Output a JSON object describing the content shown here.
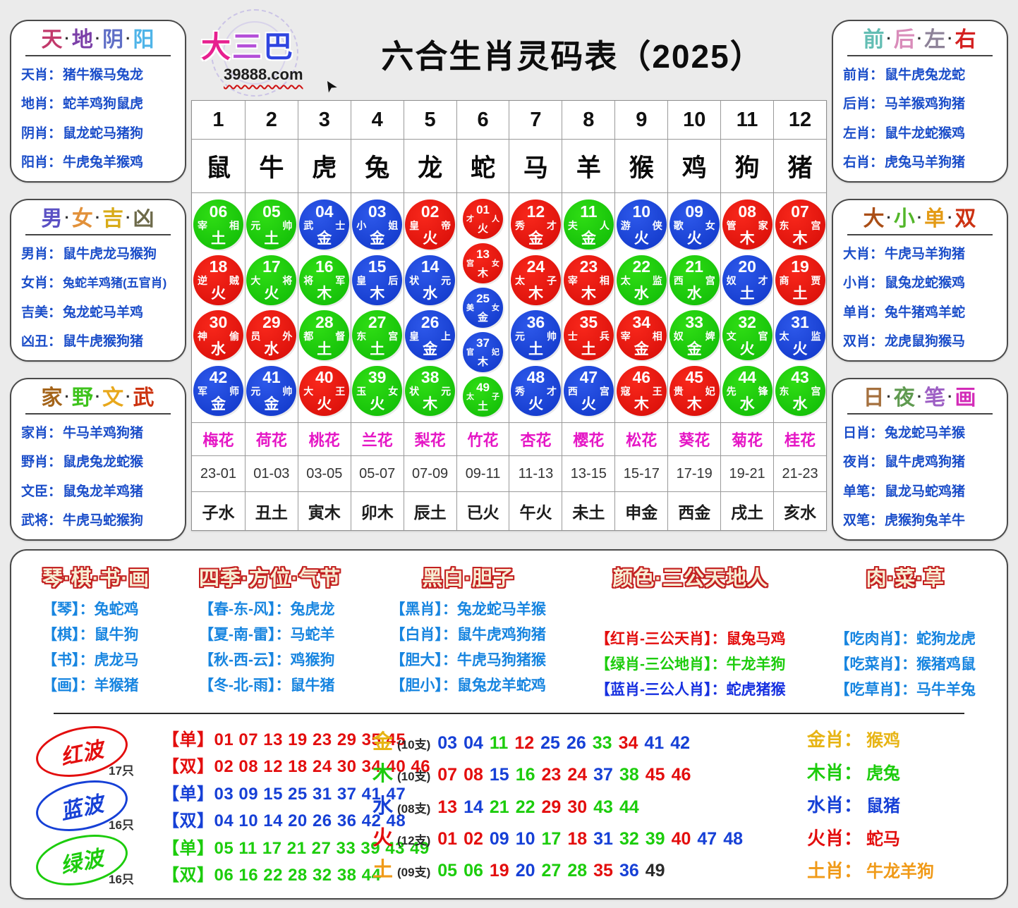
{
  "header": {
    "logo_chars": [
      {
        "t": "大",
        "c": "#e7208f"
      },
      {
        "t": "三",
        "c": "#b44fd8"
      },
      {
        "t": "巴",
        "c": "#2f45e0"
      }
    ],
    "site": "39888.com",
    "title": "六合生肖灵码表（2025）"
  },
  "corner_boxes": [
    {
      "id": "tian-di-yin-yang",
      "header": [
        [
          "天",
          "#c2396b"
        ],
        [
          "地",
          "#7b3fa8"
        ],
        [
          "阴",
          "#5f6ec6"
        ],
        [
          "阳",
          "#4fb4e8"
        ]
      ],
      "rows": [
        [
          "天肖：",
          "猪牛猴马兔龙"
        ],
        [
          "地肖：",
          "蛇羊鸡狗鼠虎"
        ],
        [
          "阴肖：",
          "鼠龙蛇马猪狗"
        ],
        [
          "阳肖：",
          "牛虎兔羊猴鸡"
        ]
      ]
    },
    {
      "id": "qian-hou-zuo-you",
      "header": [
        [
          "前",
          "#62bdb3"
        ],
        [
          "后",
          "#d98cba"
        ],
        [
          "左",
          "#8d8298"
        ],
        [
          "右",
          "#d42222"
        ]
      ],
      "rows": [
        [
          "前肖：",
          "鼠牛虎兔龙蛇"
        ],
        [
          "后肖：",
          "马羊猴鸡狗猪"
        ],
        [
          "左肖：",
          "鼠牛龙蛇猴鸡"
        ],
        [
          "右肖：",
          "虎兔马羊狗猪"
        ]
      ]
    },
    {
      "id": "nan-nv-ji-xiong",
      "header": [
        [
          "男",
          "#5b51c4"
        ],
        [
          "女",
          "#e2913a"
        ],
        [
          "吉",
          "#d8ab18"
        ],
        [
          "凶",
          "#6d6a4a"
        ]
      ],
      "rows": [
        [
          "男肖：",
          "鼠牛虎龙马猴狗"
        ],
        [
          "女肖：",
          "兔蛇羊鸡猪(五官肖)"
        ],
        [
          "吉美：",
          "兔龙蛇马羊鸡"
        ],
        [
          "凶丑：",
          "鼠牛虎猴狗猪"
        ]
      ]
    },
    {
      "id": "da-xiao-dan-shuang",
      "header": [
        [
          "大",
          "#aa4e16"
        ],
        [
          "小",
          "#53b62a"
        ],
        [
          "单",
          "#e39a14"
        ],
        [
          "双",
          "#cc3212"
        ]
      ],
      "rows": [
        [
          "大肖：",
          "牛虎马羊狗猪"
        ],
        [
          "小肖：",
          "鼠兔龙蛇猴鸡"
        ],
        [
          "单肖：",
          "兔牛猪鸡羊蛇"
        ],
        [
          "双肖：",
          "龙虎鼠狗猴马"
        ]
      ]
    },
    {
      "id": "jia-ye-wen-wu",
      "header": [
        [
          "家",
          "#a4641a"
        ],
        [
          "野",
          "#3ec31c"
        ],
        [
          "文",
          "#e8a81c"
        ],
        [
          "武",
          "#cc3410"
        ]
      ],
      "rows": [
        [
          "家肖：",
          "牛马羊鸡狗猪"
        ],
        [
          "野肖：",
          "鼠虎兔龙蛇猴"
        ],
        [
          "文臣：",
          "鼠兔龙羊鸡猪"
        ],
        [
          "武将：",
          "牛虎马蛇猴狗"
        ]
      ]
    },
    {
      "id": "ri-ye-bi-hua",
      "header": [
        [
          "日",
          "#a5703e"
        ],
        [
          "夜",
          "#5f9a50"
        ],
        [
          "笔",
          "#9d5fc4"
        ],
        [
          "画",
          "#d32cb8"
        ]
      ],
      "rows": [
        [
          "日肖：",
          "兔龙蛇马羊猴"
        ],
        [
          "夜肖：",
          "鼠牛虎鸡狗猪"
        ],
        [
          "单笔：",
          "鼠龙马蛇鸡猪"
        ],
        [
          "双笔：",
          "虎猴狗兔羊牛"
        ]
      ]
    }
  ],
  "table": {
    "numbers": [
      "1",
      "2",
      "3",
      "4",
      "5",
      "6",
      "7",
      "8",
      "9",
      "10",
      "11",
      "12"
    ],
    "animals": [
      "鼠",
      "牛",
      "虎",
      "兔",
      "龙",
      "蛇",
      "马",
      "羊",
      "猴",
      "鸡",
      "狗",
      "猪"
    ],
    "flowers": [
      "梅花",
      "荷花",
      "桃花",
      "兰花",
      "梨花",
      "竹花",
      "杏花",
      "樱花",
      "松花",
      "葵花",
      "菊花",
      "桂花"
    ],
    "times": [
      "23-01",
      "01-03",
      "03-05",
      "05-07",
      "07-09",
      "09-11",
      "11-13",
      "13-15",
      "15-17",
      "17-19",
      "19-21",
      "21-23"
    ],
    "branches": [
      "子水",
      "丑土",
      "寅木",
      "卯木",
      "辰土",
      "已火",
      "午火",
      "未土",
      "申金",
      "西金",
      "戌土",
      "亥水"
    ],
    "balls": [
      [
        [
          "06",
          "宰",
          "相",
          "土"
        ],
        [
          "18",
          "逆",
          "贼",
          "火"
        ],
        [
          "30",
          "神",
          "偷",
          "水"
        ],
        [
          "42",
          "军",
          "师",
          "金"
        ]
      ],
      [
        [
          "05",
          "元",
          "帅",
          "土"
        ],
        [
          "17",
          "大",
          "将",
          "火"
        ],
        [
          "29",
          "员",
          "外",
          "水"
        ],
        [
          "41",
          "元",
          "帅",
          "金"
        ]
      ],
      [
        [
          "04",
          "武",
          "士",
          "金"
        ],
        [
          "16",
          "将",
          "军",
          "木"
        ],
        [
          "28",
          "都",
          "督",
          "土"
        ],
        [
          "40",
          "大",
          "王",
          "火"
        ]
      ],
      [
        [
          "03",
          "小",
          "姐",
          "金"
        ],
        [
          "15",
          "皇",
          "后",
          "木"
        ],
        [
          "27",
          "东",
          "宫",
          "土"
        ],
        [
          "39",
          "玉",
          "女",
          "火"
        ]
      ],
      [
        [
          "02",
          "皇",
          "帝",
          "火"
        ],
        [
          "14",
          "状",
          "元",
          "水"
        ],
        [
          "26",
          "皇",
          "上",
          "金"
        ],
        [
          "38",
          "状",
          "元",
          "木"
        ]
      ],
      [
        [
          "01",
          "才",
          "人",
          "火"
        ],
        [
          "13",
          "宫",
          "女",
          "木"
        ],
        [
          "25",
          "美",
          "女",
          "金"
        ],
        [
          "37",
          "官",
          "妃",
          "木"
        ],
        [
          "49",
          "太",
          "子",
          "土"
        ]
      ],
      [
        [
          "12",
          "秀",
          "才",
          "金"
        ],
        [
          "24",
          "太",
          "子",
          "木"
        ],
        [
          "36",
          "元",
          "帅",
          "土"
        ],
        [
          "48",
          "秀",
          "才",
          "火"
        ]
      ],
      [
        [
          "11",
          "夫",
          "人",
          "金"
        ],
        [
          "23",
          "宰",
          "相",
          "木"
        ],
        [
          "35",
          "士",
          "兵",
          "土"
        ],
        [
          "47",
          "西",
          "宫",
          "火"
        ]
      ],
      [
        [
          "10",
          "游",
          "侠",
          "火"
        ],
        [
          "22",
          "太",
          "监",
          "水"
        ],
        [
          "34",
          "宰",
          "相",
          "金"
        ],
        [
          "46",
          "寇",
          "王",
          "木"
        ]
      ],
      [
        [
          "09",
          "歌",
          "女",
          "火"
        ],
        [
          "21",
          "西",
          "宫",
          "水"
        ],
        [
          "33",
          "奴",
          "婢",
          "金"
        ],
        [
          "45",
          "贵",
          "妃",
          "木"
        ]
      ],
      [
        [
          "08",
          "管",
          "家",
          "木"
        ],
        [
          "20",
          "奴",
          "才",
          "土"
        ],
        [
          "32",
          "文",
          "官",
          "火"
        ],
        [
          "44",
          "先",
          "锋",
          "水"
        ]
      ],
      [
        [
          "07",
          "东",
          "宫",
          "木"
        ],
        [
          "19",
          "商",
          "贾",
          "土"
        ],
        [
          "31",
          "太",
          "监",
          "火"
        ],
        [
          "43",
          "东",
          "宫",
          "水"
        ]
      ]
    ]
  },
  "wave_colors": {
    "red": {
      "hex": "#e30e0e",
      "nums": [
        "01",
        "02",
        "07",
        "08",
        "12",
        "13",
        "18",
        "19",
        "23",
        "24",
        "29",
        "30",
        "34",
        "35",
        "40",
        "45",
        "46"
      ]
    },
    "blue": {
      "hex": "#1640d6",
      "nums": [
        "03",
        "04",
        "09",
        "10",
        "14",
        "15",
        "20",
        "25",
        "26",
        "31",
        "36",
        "37",
        "41",
        "42",
        "47",
        "48"
      ]
    },
    "green": {
      "hex": "#1ccc0c",
      "nums": [
        "05",
        "06",
        "11",
        "16",
        "17",
        "21",
        "22",
        "27",
        "28",
        "32",
        "33",
        "38",
        "39",
        "43",
        "44",
        "49"
      ]
    }
  },
  "bottom_groups": [
    {
      "id": "qin-qi-shu-hua",
      "header": "琴·棋·书·画",
      "offset": false,
      "rows": [
        [
          "【琴】：",
          "兔蛇鸡",
          ""
        ],
        [
          "【棋】：",
          "鼠牛狗",
          ""
        ],
        [
          "【书】：",
          "虎龙马",
          ""
        ],
        [
          "【画】：",
          "羊猴猪",
          ""
        ]
      ]
    },
    {
      "id": "siji-fangwei-qijie",
      "header": "四季·方位·气节",
      "offset": false,
      "rows": [
        [
          "【春-东-风】：",
          "兔虎龙",
          ""
        ],
        [
          "【夏-南-雷】：",
          "马蛇羊",
          ""
        ],
        [
          "【秋-西-云】：",
          "鸡猴狗",
          ""
        ],
        [
          "【冬-北-雨】：",
          "鼠牛猪",
          ""
        ]
      ]
    },
    {
      "id": "heibai-danzi",
      "header": "黑白·胆子",
      "offset": false,
      "rows": [
        [
          "【黑肖】：",
          "兔龙蛇马羊猴",
          ""
        ],
        [
          "【白肖】：",
          "鼠牛虎鸡狗猪",
          ""
        ],
        [
          "【胆大】：",
          "牛虎马狗猪猴",
          ""
        ],
        [
          "【胆小】：",
          "鼠兔龙羊蛇鸡",
          ""
        ]
      ]
    },
    {
      "id": "yanse-sangong",
      "header": "颜色·三公天地人",
      "offset": true,
      "rows": [
        [
          "【红肖-三公天肖】：",
          "鼠兔马鸡",
          "#e30e0e"
        ],
        [
          "【绿肖-三公地肖】：",
          "牛龙羊狗",
          "#1ccc0c"
        ],
        [
          "【蓝肖-三公人肖】：",
          "蛇虎猪猴",
          "#1630e0"
        ]
      ]
    },
    {
      "id": "rou-cai-cao",
      "header": "肉·菜·草",
      "offset": true,
      "rows": [
        [
          "【吃肉肖】：",
          "蛇狗龙虎",
          ""
        ],
        [
          "【吃菜肖】：",
          "猴猪鸡鼠",
          ""
        ],
        [
          "【吃草肖】：",
          "马牛羊兔",
          ""
        ]
      ]
    }
  ],
  "waves": [
    {
      "id": "red-wave",
      "name": "红波",
      "count": "17只",
      "hex": "#e30e0e",
      "lines": [
        [
          "【单】",
          "01 07 13 19 23 29 35 45"
        ],
        [
          "【双】",
          "02 08 12 18 24 30 34 40 46"
        ]
      ]
    },
    {
      "id": "blue-wave",
      "name": "蓝波",
      "count": "16只",
      "hex": "#1640d6",
      "lines": [
        [
          "【单】",
          "03 09 15 25 31 37 41 47"
        ],
        [
          "【双】",
          "04 10 14 20 26 36 42 48"
        ]
      ]
    },
    {
      "id": "green-wave",
      "name": "绿波",
      "count": "16只",
      "hex": "#1ccc0c",
      "lines": [
        [
          "【单】",
          "05 11 17 21 27 33 39 43 49"
        ],
        [
          "【双】",
          "06 16 22 28 32 38 44"
        ]
      ]
    }
  ],
  "elements": [
    {
      "el": "金",
      "hex": "#e7b414",
      "count": "(10支)",
      "nums": [
        "03",
        "04",
        "11",
        "12",
        "25",
        "26",
        "33",
        "34",
        "41",
        "42"
      ],
      "overrides": {}
    },
    {
      "el": "木",
      "hex": "#1ccc0c",
      "count": "(10支)",
      "nums": [
        "07",
        "08",
        "15",
        "16",
        "23",
        "24",
        "37",
        "38",
        "45",
        "46"
      ],
      "overrides": {}
    },
    {
      "el": "水",
      "hex": "#1640d6",
      "count": "(08支)",
      "nums": [
        "13",
        "14",
        "21",
        "22",
        "29",
        "30",
        "43",
        "44"
      ],
      "overrides": {}
    },
    {
      "el": "火",
      "hex": "#e30e0e",
      "count": "(12支)",
      "nums": [
        "01",
        "02",
        "09",
        "10",
        "17",
        "18",
        "31",
        "32",
        "39",
        "40",
        "47",
        "48"
      ],
      "overrides": {}
    },
    {
      "el": "土",
      "hex": "#f09a18",
      "count": "(09支)",
      "nums": [
        "05",
        "06",
        "19",
        "20",
        "27",
        "28",
        "35",
        "36",
        "49"
      ],
      "overrides": {
        "49": "#2b2b2b"
      }
    }
  ],
  "element_zodiac": [
    {
      "label": "金肖：",
      "value": "猴鸡",
      "hex": "#e7b414"
    },
    {
      "label": "木肖：",
      "value": "虎兔",
      "hex": "#1ccc0c"
    },
    {
      "label": "水肖：",
      "value": "鼠猪",
      "hex": "#1640d6"
    },
    {
      "label": "火肖：",
      "value": "蛇马",
      "hex": "#e30e0e"
    },
    {
      "label": "土肖：",
      "value": "牛龙羊狗",
      "hex": "#f09a18"
    }
  ]
}
